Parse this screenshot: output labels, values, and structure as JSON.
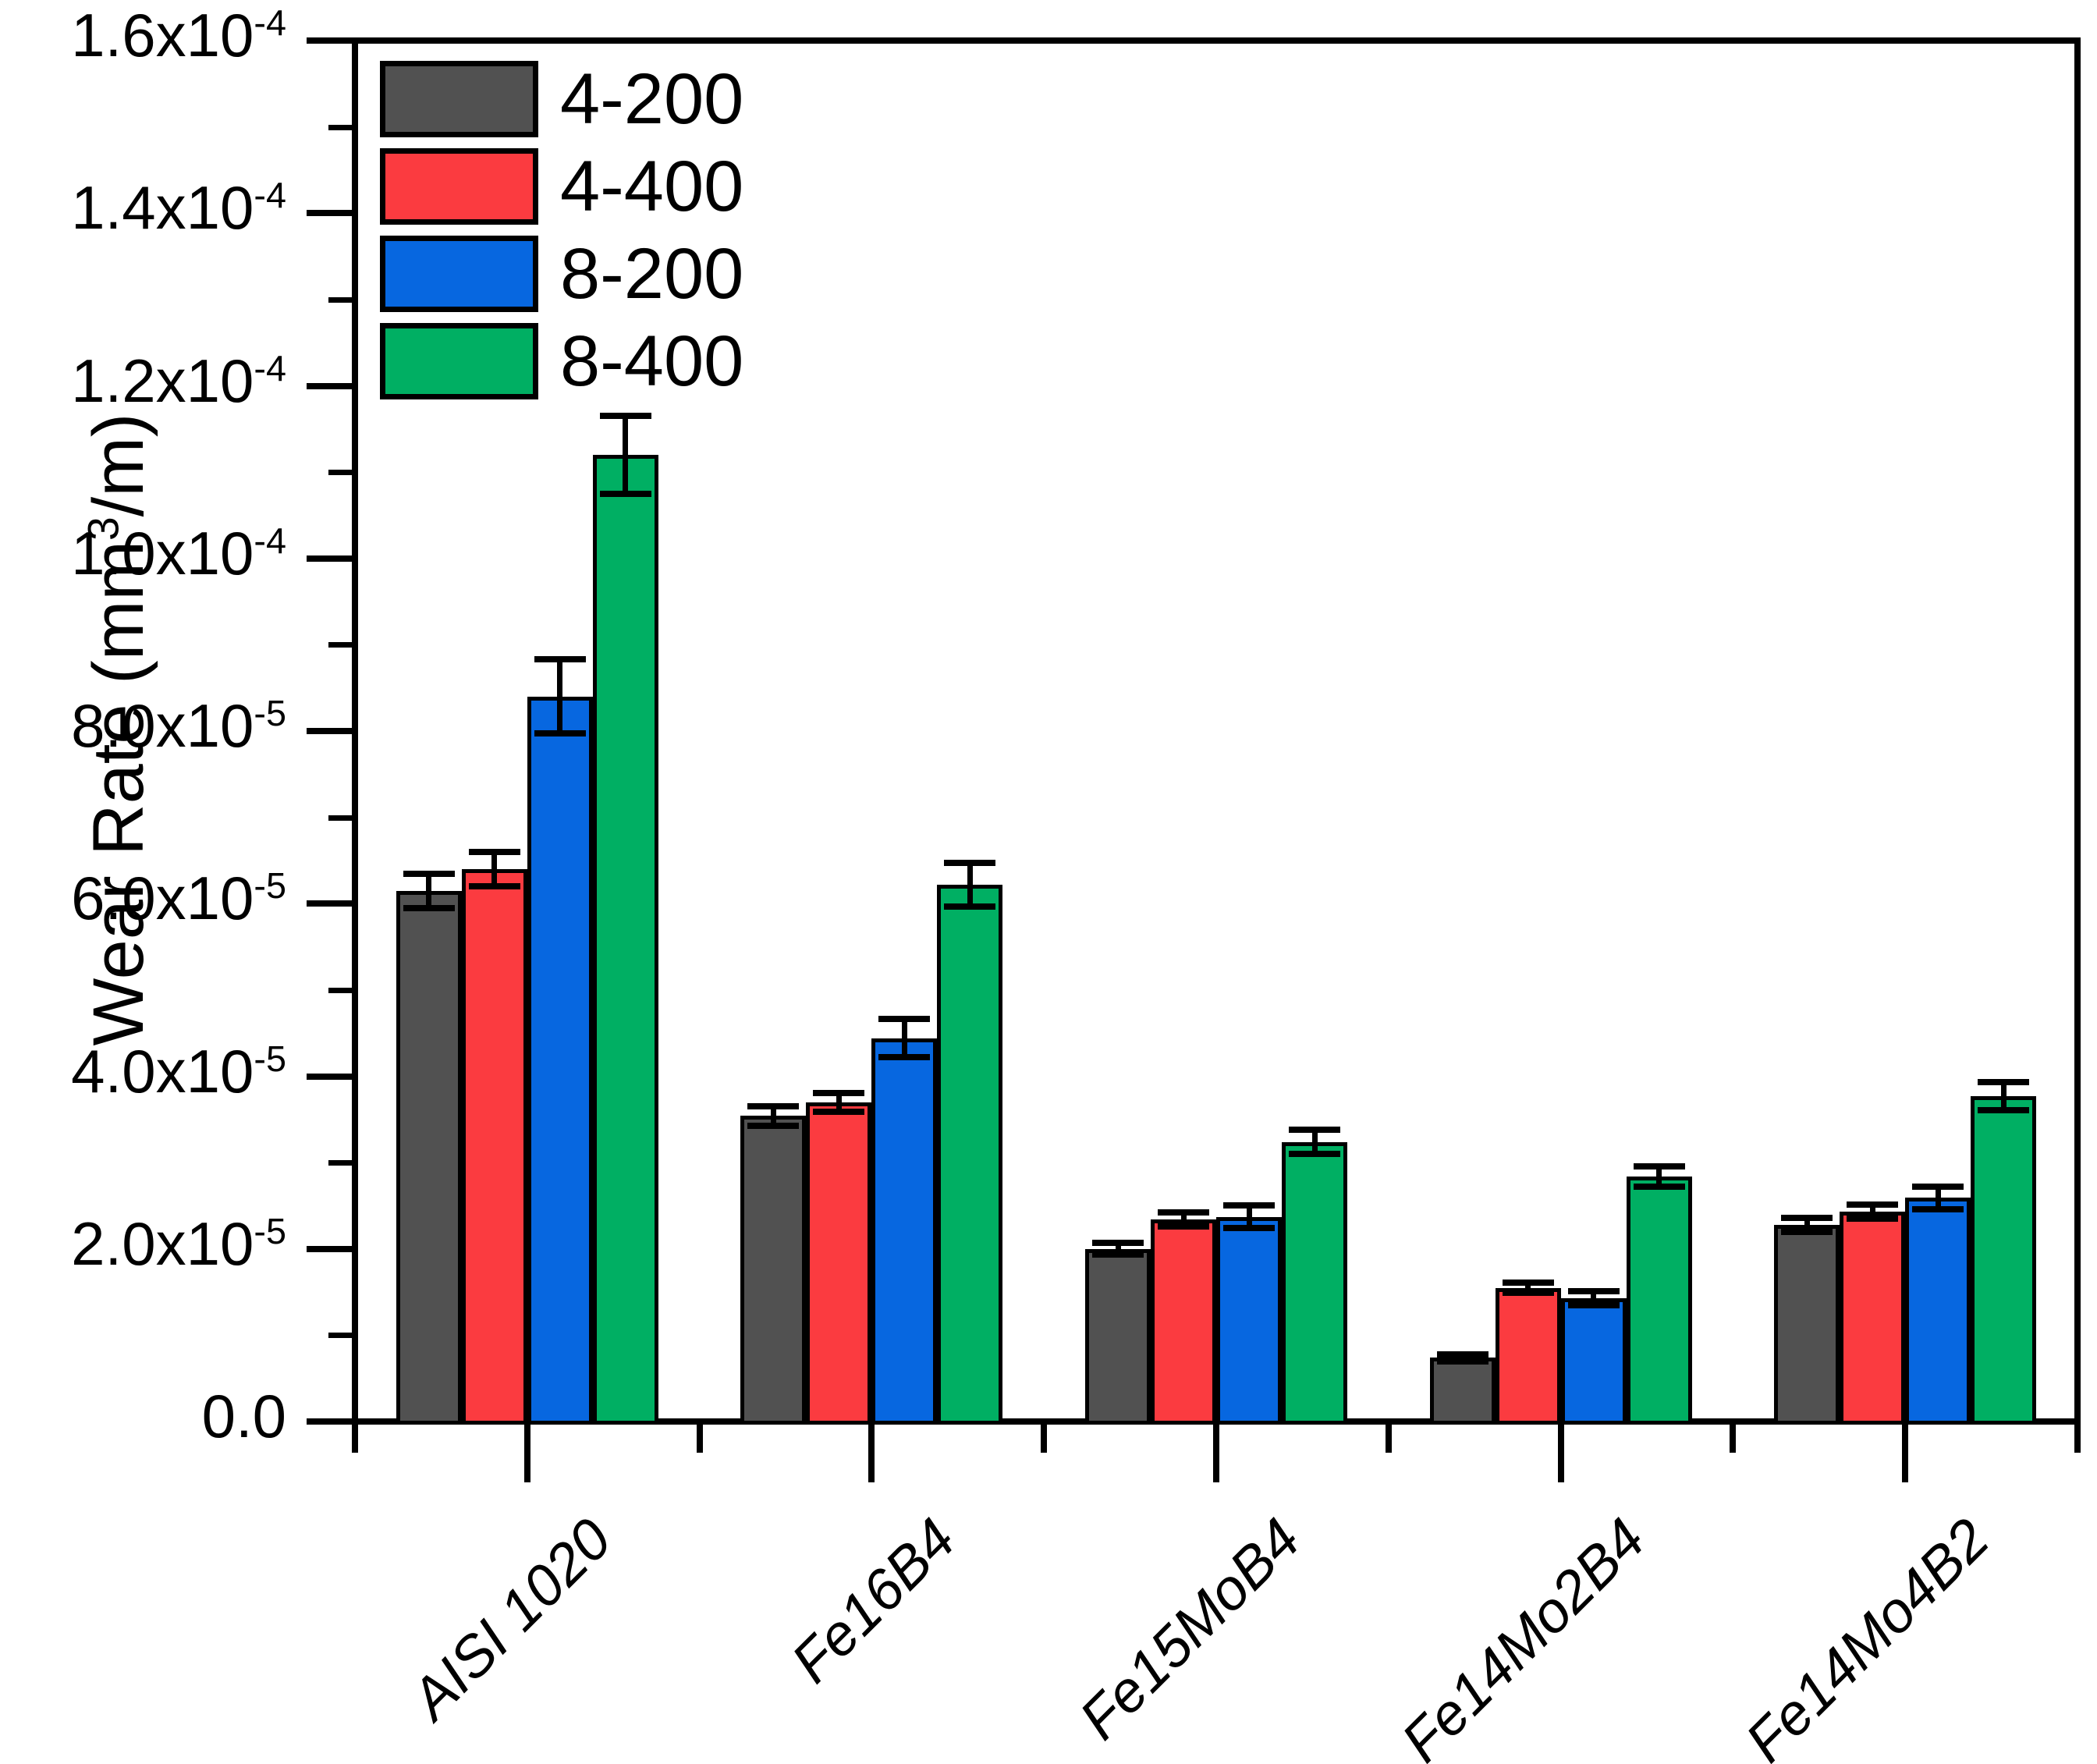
{
  "chart_data": {
    "type": "bar",
    "title": "",
    "xlabel": "",
    "ylabel": {
      "pre": "Wear Rate (mm",
      "sup": "3",
      "post": "/m)"
    },
    "value_unit_e": "1e-6 mm3/m",
    "categories": [
      "AISI 1020",
      "Fe16B4",
      "Fe15MoB4",
      "Fe14Mo2B4",
      "Fe14Mo4B2"
    ],
    "series": [
      {
        "name": "4-200",
        "color": "#515151",
        "values_e6": [
          61.5,
          35.4,
          20.0,
          7.4,
          22.8
        ],
        "errors_e6": [
          2.0,
          1.1,
          0.7,
          0.4,
          0.8
        ]
      },
      {
        "name": "4-400",
        "color": "#FB3B40",
        "values_e6": [
          64.0,
          37.0,
          23.4,
          15.5,
          24.3
        ],
        "errors_e6": [
          2.0,
          1.1,
          0.8,
          0.55,
          0.8
        ]
      },
      {
        "name": "8-200",
        "color": "#0767E0",
        "values_e6": [
          84.0,
          44.4,
          23.7,
          14.3,
          25.9
        ],
        "errors_e6": [
          4.3,
          2.2,
          1.3,
          0.8,
          1.3
        ]
      },
      {
        "name": "8-400",
        "color": "#00AF63",
        "values_e6": [
          112.0,
          62.2,
          32.4,
          28.4,
          37.7
        ],
        "errors_e6": [
          4.5,
          2.5,
          1.4,
          1.2,
          1.6
        ]
      }
    ],
    "ylim_e6": [
      0,
      160
    ],
    "y_major_step_e6": 20,
    "y_minor_step_e6": 10,
    "grid": "off",
    "legend_position": "top-left-inside",
    "y_tick_labels": [
      {
        "v": 0,
        "base": "0.0",
        "exp": ""
      },
      {
        "v": 20,
        "base": "2.0x10",
        "exp": "-5"
      },
      {
        "v": 40,
        "base": "4.0x10",
        "exp": "-5"
      },
      {
        "v": 60,
        "base": "6.0x10",
        "exp": "-5"
      },
      {
        "v": 80,
        "base": "8.0x10",
        "exp": "-5"
      },
      {
        "v": 100,
        "base": "1.0x10",
        "exp": "-4"
      },
      {
        "v": 120,
        "base": "1.2x10",
        "exp": "-4"
      },
      {
        "v": 140,
        "base": "1.4x10",
        "exp": "-4"
      },
      {
        "v": 160,
        "base": "1.6x10",
        "exp": "-4"
      }
    ],
    "axis_color": "#000000",
    "background_color": "#ffffff"
  }
}
